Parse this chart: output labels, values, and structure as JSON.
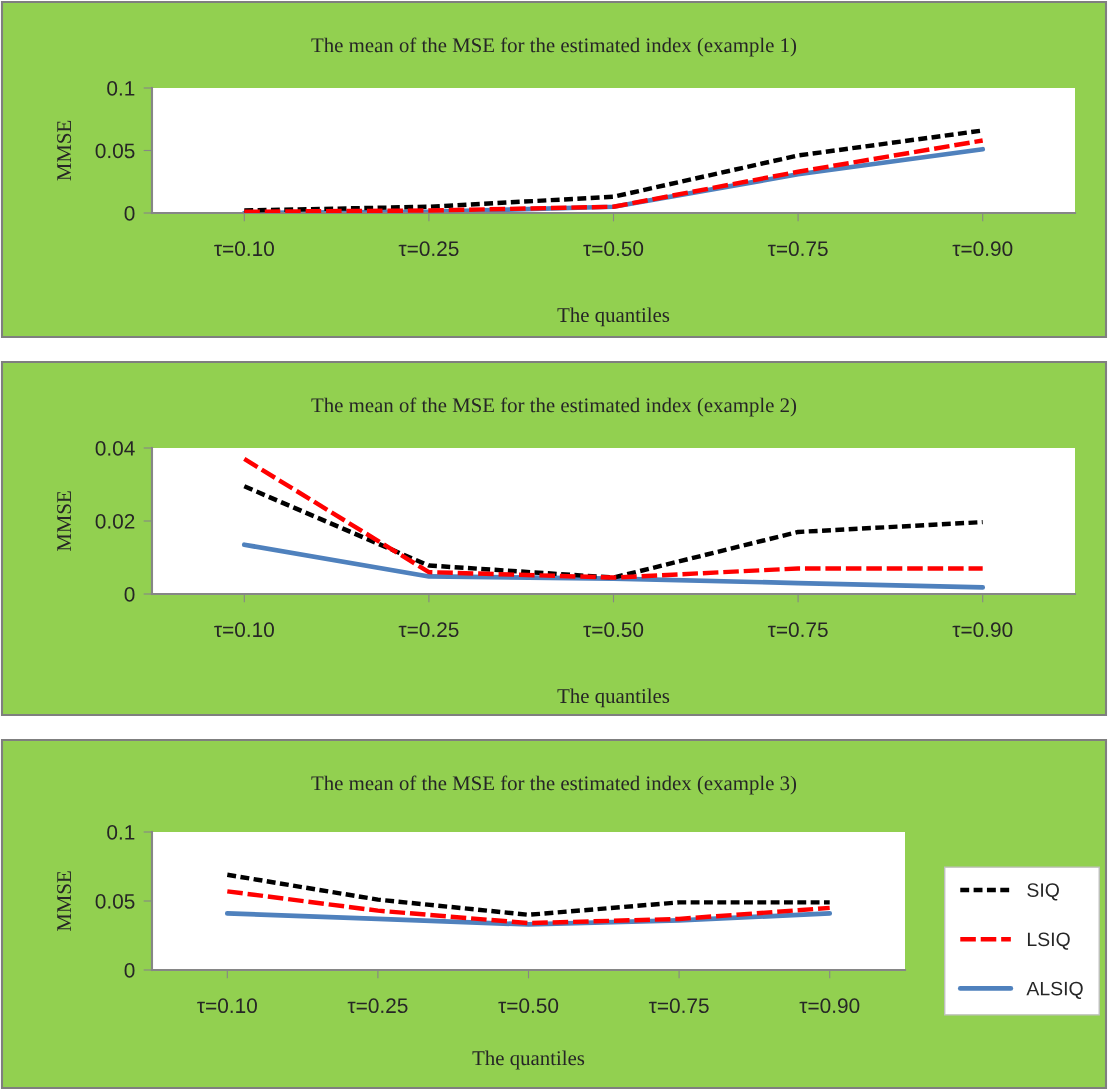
{
  "chart_data": [
    {
      "type": "line",
      "title": "The mean of the MSE for the estimated index (example 1)",
      "xlabel": "The quantiles",
      "ylabel": "MMSE",
      "categories": [
        "τ=0.10",
        "τ=0.25",
        "τ=0.50",
        "τ=0.75",
        "τ=0.90"
      ],
      "ylim": [
        0,
        0.1
      ],
      "yticks": [
        0,
        0.05,
        0.1
      ],
      "grid": false,
      "legend": false,
      "series": [
        {
          "color": "#000000",
          "line_style": "dotted",
          "values": [
            0.002,
            0.005,
            0.013,
            0.046,
            0.066
          ]
        },
        {
          "color": "#ff0000",
          "line_style": "dashed",
          "values": [
            0.001,
            0.002,
            0.005,
            0.033,
            0.058
          ]
        },
        {
          "color": "#4f81bd",
          "line_style": "solid",
          "values": [
            0.0,
            0.001,
            0.005,
            0.031,
            0.051
          ]
        }
      ]
    },
    {
      "type": "line",
      "title": "The mean of the MSE for the estimated index (example 2)",
      "xlabel": "The quantiles",
      "ylabel": "MMSE",
      "categories": [
        "τ=0.10",
        "τ=0.25",
        "τ=0.50",
        "τ=0.75",
        "τ=0.90"
      ],
      "ylim": [
        0,
        0.04
      ],
      "yticks": [
        0,
        0.02,
        0.04
      ],
      "grid": false,
      "legend": false,
      "series": [
        {
          "color": "#000000",
          "line_style": "dotted",
          "values": [
            0.0295,
            0.0078,
            0.0045,
            0.017,
            0.0197
          ]
        },
        {
          "color": "#ff0000",
          "line_style": "dashed",
          "values": [
            0.037,
            0.006,
            0.0045,
            0.007,
            0.007
          ]
        },
        {
          "color": "#4f81bd",
          "line_style": "solid",
          "values": [
            0.0135,
            0.0048,
            0.0042,
            0.003,
            0.0018
          ]
        }
      ]
    },
    {
      "type": "line",
      "title": "The mean of the MSE for the estimated index (example 3)",
      "xlabel": "The quantiles",
      "ylabel": "MMSE",
      "categories": [
        "τ=0.10",
        "τ=0.25",
        "τ=0.50",
        "τ=0.75",
        "τ=0.90"
      ],
      "ylim": [
        0,
        0.1
      ],
      "yticks": [
        0,
        0.05,
        0.1
      ],
      "grid": false,
      "legend": "right",
      "series": [
        {
          "name": "SIQ",
          "color": "#000000",
          "line_style": "dotted",
          "values": [
            0.069,
            0.051,
            0.04,
            0.049,
            0.049
          ]
        },
        {
          "name": "LSIQ",
          "color": "#ff0000",
          "line_style": "dashed",
          "values": [
            0.057,
            0.043,
            0.034,
            0.037,
            0.045
          ]
        },
        {
          "name": "ALSIQ",
          "color": "#4f81bd",
          "line_style": "solid",
          "values": [
            0.041,
            0.037,
            0.033,
            0.036,
            0.041
          ]
        }
      ]
    }
  ]
}
